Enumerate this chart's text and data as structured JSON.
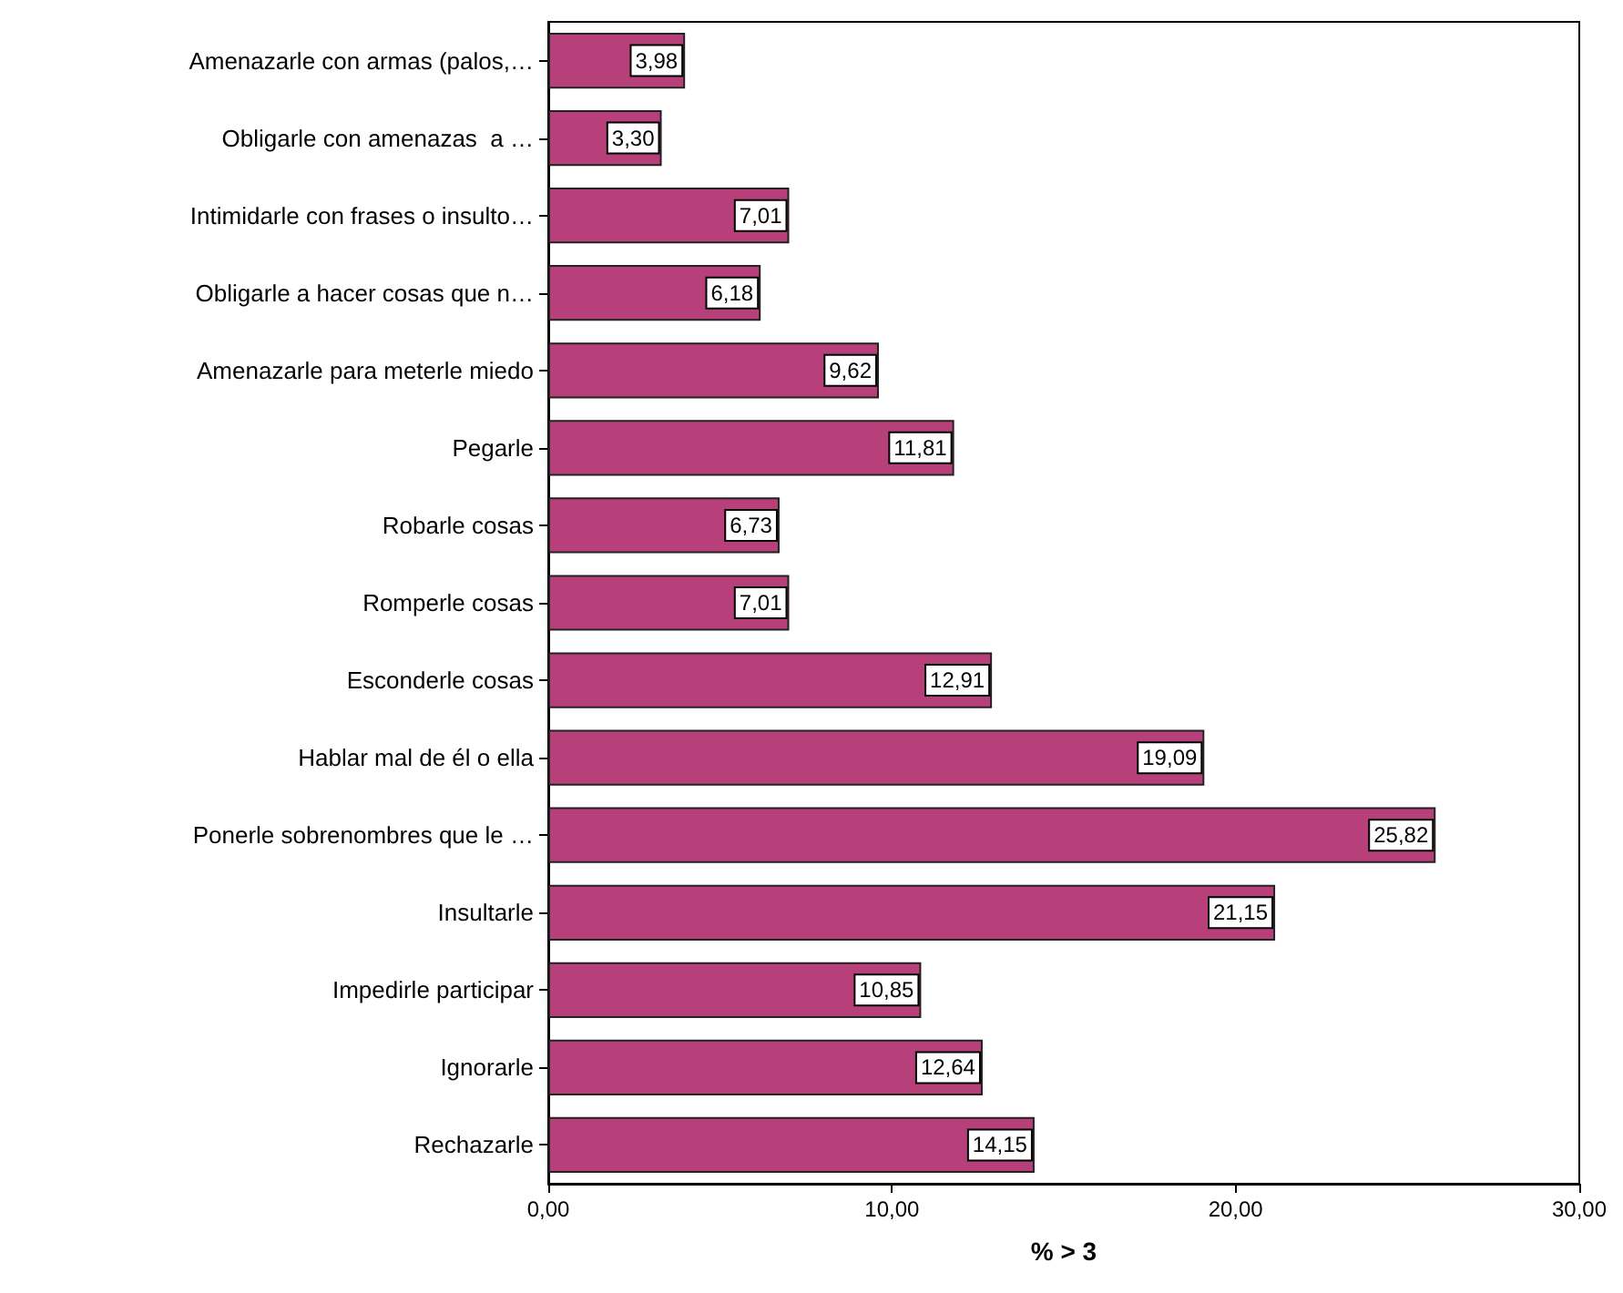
{
  "chart_data": {
    "type": "bar",
    "orientation": "horizontal",
    "xlabel": "% > 3",
    "categories": [
      "Amenazarle con armas (palos,…",
      "Obligarle con amenazas  a …",
      "Intimidarle con frases o insulto…",
      "Obligarle a hacer cosas que n…",
      "Amenazarle para meterle miedo",
      "Pegarle",
      "Robarle cosas",
      "Romperle cosas",
      "Esconderle cosas",
      "Hablar mal de él o ella",
      "Ponerle sobrenombres que le …",
      "Insultarle",
      "Impedirle participar",
      "Ignorarle",
      "Rechazarle"
    ],
    "values": [
      3.98,
      3.3,
      7.01,
      6.18,
      9.62,
      11.81,
      6.73,
      7.01,
      12.91,
      19.09,
      25.82,
      21.15,
      10.85,
      12.64,
      14.15
    ],
    "value_labels": [
      "3,98",
      "3,30",
      "7,01",
      "6,18",
      "9,62",
      "11,81",
      "6,73",
      "7,01",
      "12,91",
      "19,09",
      "25,82",
      "21,15",
      "10,85",
      "12,64",
      "14,15"
    ],
    "color": "#b8407a",
    "xlim": [
      0,
      30
    ],
    "xticks": [
      {
        "value": 0,
        "label": "0,00"
      },
      {
        "value": 10,
        "label": "10,00"
      },
      {
        "value": 20,
        "label": "20,00"
      },
      {
        "value": 30,
        "label": "30,00"
      }
    ],
    "grid": false
  }
}
